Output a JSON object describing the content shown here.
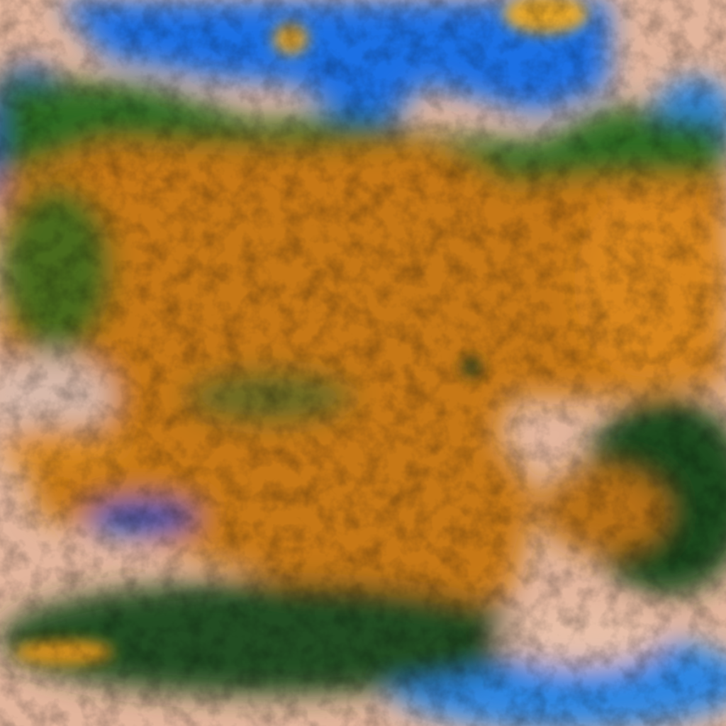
{
  "image": {
    "kind": "false-color satellite cloud imagery",
    "palette": {
      "high_cloud": "#c97a12",
      "high_cloud_bright": "#e0962a",
      "thin_cloud": "#2f6a1e",
      "water": "#1a6fe0",
      "ice_edge": "#3aa0d8",
      "low_cloud": "#e8bfa5",
      "deep_shadow": "#123a18",
      "hot_edge": "#e05010"
    }
  }
}
